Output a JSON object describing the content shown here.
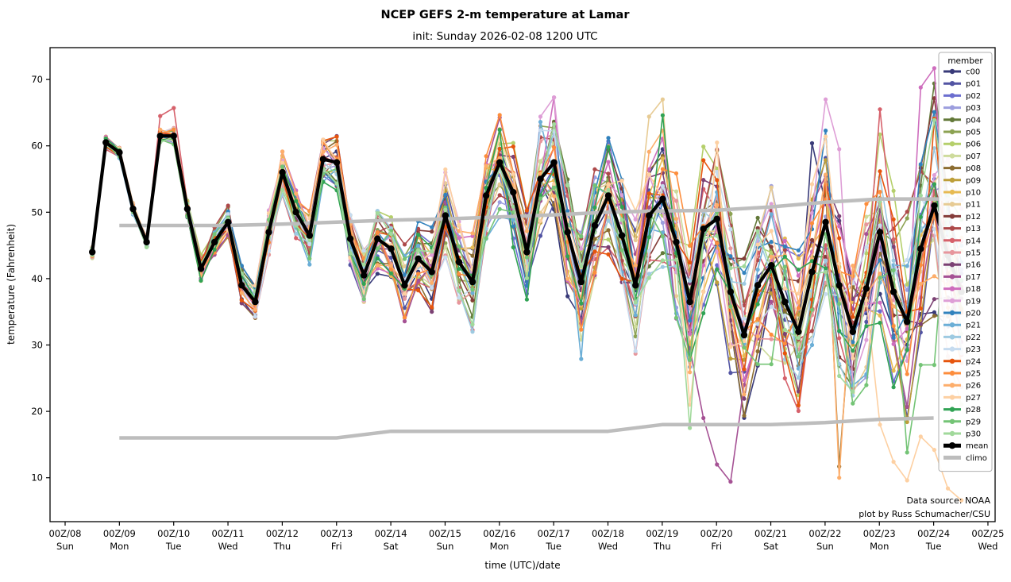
{
  "title": "NCEP GEFS 2-m temperature at Lamar",
  "subtitle": "init: Sunday 2026-02-08 1200 UTC",
  "annotations": {
    "source": "Data source: NOAA",
    "credit": "plot by Russ Schumacher/CSU"
  },
  "chart_data": {
    "type": "line",
    "title": "NCEP GEFS 2-m temperature at Lamar",
    "subtitle": "init: Sunday 2026-02-08 1200 UTC",
    "xlabel": "time (UTC)/date",
    "ylabel": "temperature (Fahrenheit)",
    "legend_title": "member",
    "x_start": "12Z 2026-02-08",
    "x_step_hours": 6,
    "n_steps": 65,
    "ylim": [
      3.4,
      74.8
    ],
    "y_ticks": [
      10,
      20,
      30,
      40,
      50,
      60,
      70
    ],
    "x_ticks": [
      {
        "z": "00Z/08",
        "day": "Sun"
      },
      {
        "z": "00Z/09",
        "day": "Mon"
      },
      {
        "z": "00Z/10",
        "day": "Tue"
      },
      {
        "z": "00Z/11",
        "day": "Wed"
      },
      {
        "z": "00Z/12",
        "day": "Thu"
      },
      {
        "z": "00Z/13",
        "day": "Fri"
      },
      {
        "z": "00Z/14",
        "day": "Sat"
      },
      {
        "z": "00Z/15",
        "day": "Sun"
      },
      {
        "z": "00Z/16",
        "day": "Mon"
      },
      {
        "z": "00Z/17",
        "day": "Tue"
      },
      {
        "z": "00Z/18",
        "day": "Wed"
      },
      {
        "z": "00Z/19",
        "day": "Thu"
      },
      {
        "z": "00Z/20",
        "day": "Fri"
      },
      {
        "z": "00Z/21",
        "day": "Sat"
      },
      {
        "z": "00Z/22",
        "day": "Sun"
      },
      {
        "z": "00Z/23",
        "day": "Mon"
      },
      {
        "z": "00Z/24",
        "day": "Tue"
      },
      {
        "z": "00Z/25",
        "day": "Wed"
      }
    ],
    "mean": {
      "label": "mean",
      "color": "#000000",
      "values": [
        44,
        60.5,
        59,
        50.5,
        45.5,
        61.5,
        61.5,
        50.5,
        41.5,
        45.5,
        48.5,
        39,
        36.5,
        47,
        56,
        50,
        46.5,
        58,
        57.5,
        46,
        40.5,
        46,
        44.5,
        39,
        43,
        41,
        49.5,
        42.5,
        39.5,
        52.5,
        57.5,
        53,
        44,
        55,
        57.5,
        47,
        39.5,
        48,
        52.5,
        46.5,
        39,
        49.5,
        52,
        45.5,
        36.5,
        47.5,
        49,
        38,
        31.5,
        39,
        42,
        36.5,
        32,
        41,
        48.5,
        39,
        32,
        38.5,
        47,
        38,
        33.5,
        44.5,
        51,
        43.5,
        38
      ]
    },
    "climo": {
      "label": "climo",
      "color": "#bdbdbd",
      "upper_start_hour_offset": 12,
      "upper_daily": [
        48,
        48,
        48,
        48.2,
        48.5,
        48.8,
        49,
        49.3,
        49.6,
        50,
        50.2,
        50.3,
        50.8,
        51.5,
        52,
        52,
        52
      ],
      "lower_daily": [
        16,
        16,
        16,
        16,
        16,
        17,
        17,
        17,
        17,
        17,
        18,
        18,
        18,
        18.3,
        18.8,
        19
      ]
    },
    "members": [
      {
        "name": "c00",
        "color": "#393b79"
      },
      {
        "name": "p01",
        "color": "#5254a3"
      },
      {
        "name": "p02",
        "color": "#6b6ecf"
      },
      {
        "name": "p03",
        "color": "#9c9ede"
      },
      {
        "name": "p04",
        "color": "#637939"
      },
      {
        "name": "p05",
        "color": "#8ca252"
      },
      {
        "name": "p06",
        "color": "#b5cf6b"
      },
      {
        "name": "p07",
        "color": "#cedb9c"
      },
      {
        "name": "p08",
        "color": "#8c6d31"
      },
      {
        "name": "p09",
        "color": "#bd9e39"
      },
      {
        "name": "p10",
        "color": "#e7ba52"
      },
      {
        "name": "p11",
        "color": "#e7cb94"
      },
      {
        "name": "p12",
        "color": "#843c39"
      },
      {
        "name": "p13",
        "color": "#ad494a"
      },
      {
        "name": "p14",
        "color": "#d6616b"
      },
      {
        "name": "p15",
        "color": "#e7969c"
      },
      {
        "name": "p16",
        "color": "#7b4173"
      },
      {
        "name": "p17",
        "color": "#a55194"
      },
      {
        "name": "p18",
        "color": "#ce6dbd"
      },
      {
        "name": "p19",
        "color": "#de9ed6"
      },
      {
        "name": "p20",
        "color": "#3182bd"
      },
      {
        "name": "p21",
        "color": "#6baed6"
      },
      {
        "name": "p22",
        "color": "#9ecae1"
      },
      {
        "name": "p23",
        "color": "#c6dbef"
      },
      {
        "name": "p24",
        "color": "#e6550d"
      },
      {
        "name": "p25",
        "color": "#fd8d3c"
      },
      {
        "name": "p26",
        "color": "#fdae6b"
      },
      {
        "name": "p27",
        "color": "#fdd0a2"
      },
      {
        "name": "p28",
        "color": "#31a354"
      },
      {
        "name": "p29",
        "color": "#74c476"
      },
      {
        "name": "p30",
        "color": "#a1d99b"
      }
    ],
    "member_synthesis": {
      "note": "members track the mean with spread growing from ~±1F to ~±15F over 16 days",
      "env_base": 0.8,
      "env_growth": 0.215,
      "env_flat_until": 4,
      "w1": 0.49,
      "w2": 1.37,
      "a1": 0.62,
      "a2": 0.5,
      "phi": 0.7321,
      "psi": 2.418,
      "clamp": [
        4.5,
        72.5
      ]
    },
    "member_overrides": [
      {
        "m": "p14",
        "i": 5,
        "v": [
          64.5,
          65.7
        ]
      },
      {
        "m": "p14",
        "i": 58,
        "v": [
          65.5
        ]
      },
      {
        "m": "p19",
        "i": 33,
        "v": [
          64.4,
          67.3
        ]
      },
      {
        "m": "p19",
        "i": 54,
        "v": [
          67,
          59.5
        ]
      },
      {
        "m": "p18",
        "i": 34,
        "v": [
          67.3
        ]
      },
      {
        "m": "p18",
        "i": 61,
        "v": [
          68.8,
          71.7
        ]
      },
      {
        "m": "p04",
        "i": 62,
        "v": [
          69.4
        ]
      },
      {
        "m": "p11",
        "i": 41,
        "v": [
          64.4,
          67
        ]
      },
      {
        "m": "p28",
        "i": 30,
        "v": [
          62.4
        ]
      },
      {
        "m": "p28",
        "i": 42,
        "v": [
          64.6
        ]
      },
      {
        "m": "p21",
        "i": 33,
        "v": [
          63.6
        ]
      },
      {
        "m": "p21",
        "i": 36,
        "v": [
          27.9
        ]
      },
      {
        "m": "p15",
        "i": 40,
        "v": [
          28.7
        ]
      },
      {
        "m": "p20",
        "i": 38,
        "v": [
          61.2
        ]
      },
      {
        "m": "p20",
        "i": 54,
        "v": [
          62.3
        ]
      },
      {
        "m": "c00",
        "i": 53,
        "v": [
          60.4
        ]
      },
      {
        "m": "p17",
        "i": 43,
        "v": [
          34,
          29.5,
          19,
          12,
          9.4,
          24,
          31,
          36.5
        ]
      },
      {
        "m": "p27",
        "i": 44,
        "v": [
          21,
          38,
          60.5
        ]
      },
      {
        "m": "p27",
        "i": 58,
        "v": [
          18,
          12.4,
          9.6,
          16.2,
          14.2,
          8.4,
          6.6
        ]
      },
      {
        "m": "p26",
        "i": 44,
        "v": [
          25.9
        ]
      },
      {
        "m": "p26",
        "i": 55,
        "v": [
          10
        ]
      },
      {
        "m": "p08",
        "i": 55,
        "v": [
          11.7
        ]
      },
      {
        "m": "p29",
        "i": 49,
        "v": [
          27.1,
          27.1
        ]
      },
      {
        "m": "p29",
        "i": 60,
        "v": [
          13.8,
          27,
          27
        ]
      },
      {
        "m": "p30",
        "i": 44,
        "v": [
          17.5
        ]
      },
      {
        "m": "p24",
        "i": 62,
        "v": [
          64.1
        ]
      }
    ]
  }
}
